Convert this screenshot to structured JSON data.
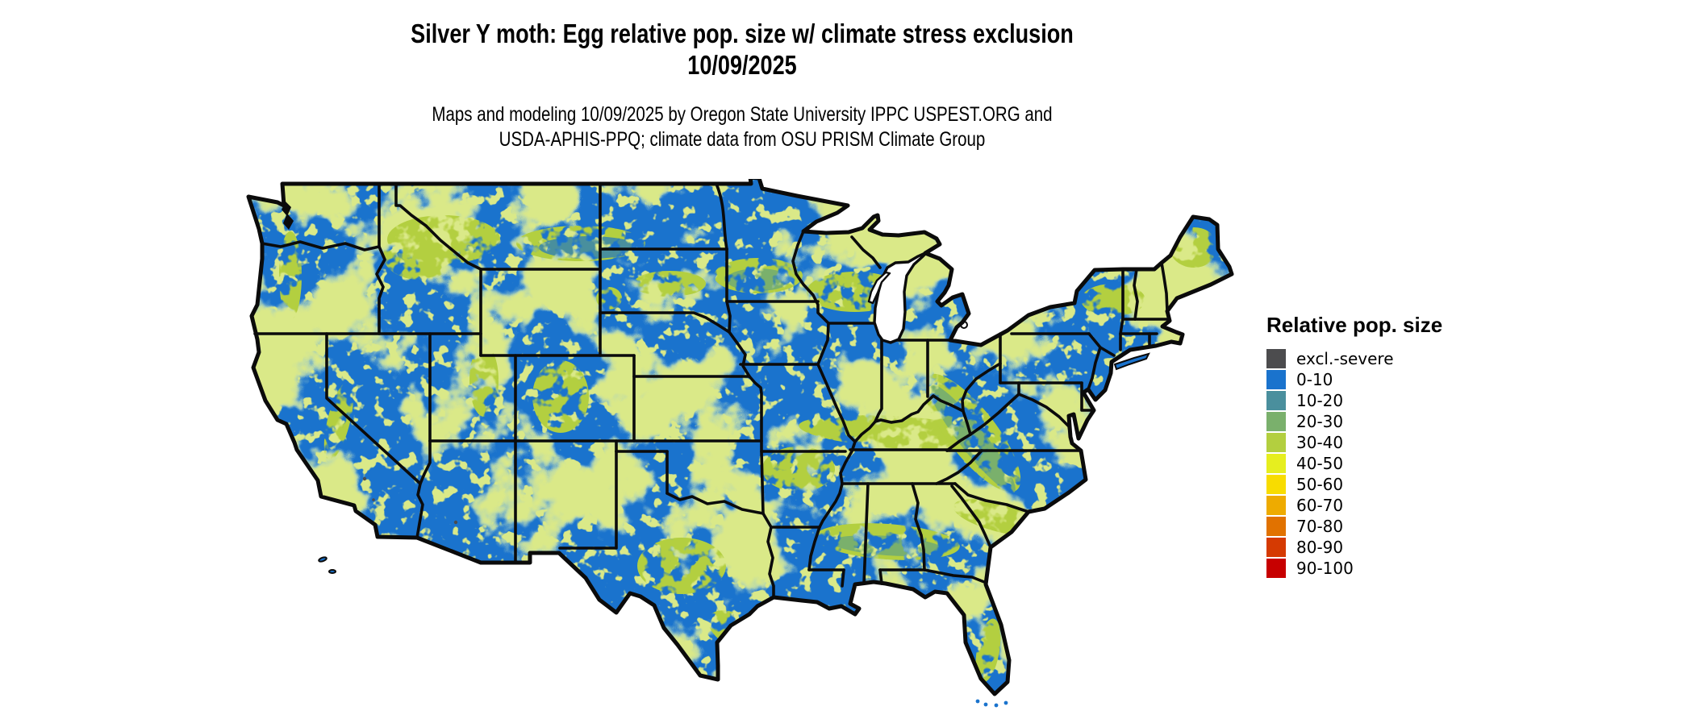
{
  "header": {
    "title_line1": "Silver Y moth: Egg relative pop. size w/ climate stress exclusion",
    "title_line2": "10/09/2025",
    "subtitle_line1": "Maps and modeling 10/09/2025 by Oregon State University IPPC USPEST.ORG and",
    "subtitle_line2": "USDA-APHIS-PPQ; climate data from OSU PRISM Climate Group"
  },
  "legend": {
    "title": "Relative pop. size",
    "items": [
      {
        "label": "excl.-severe",
        "color": "#4c4c4e"
      },
      {
        "label": "0-10",
        "color": "#1a73cd"
      },
      {
        "label": "10-20",
        "color": "#4a8f9d"
      },
      {
        "label": "20-30",
        "color": "#7ab06c"
      },
      {
        "label": "30-40",
        "color": "#b3cf3f"
      },
      {
        "label": "40-50",
        "color": "#e6ee1f"
      },
      {
        "label": "50-60",
        "color": "#f8dc00"
      },
      {
        "label": "60-70",
        "color": "#eeab00"
      },
      {
        "label": "70-80",
        "color": "#e17200"
      },
      {
        "label": "80-90",
        "color": "#d53a02"
      },
      {
        "label": "90-100",
        "color": "#c70000"
      }
    ]
  },
  "map": {
    "region": "Contiguous United States",
    "base_color": "#1a73cd",
    "speckle_color": "#b3cf3f",
    "border_color": "#0b0b0b",
    "water_color": "#ffffff"
  }
}
